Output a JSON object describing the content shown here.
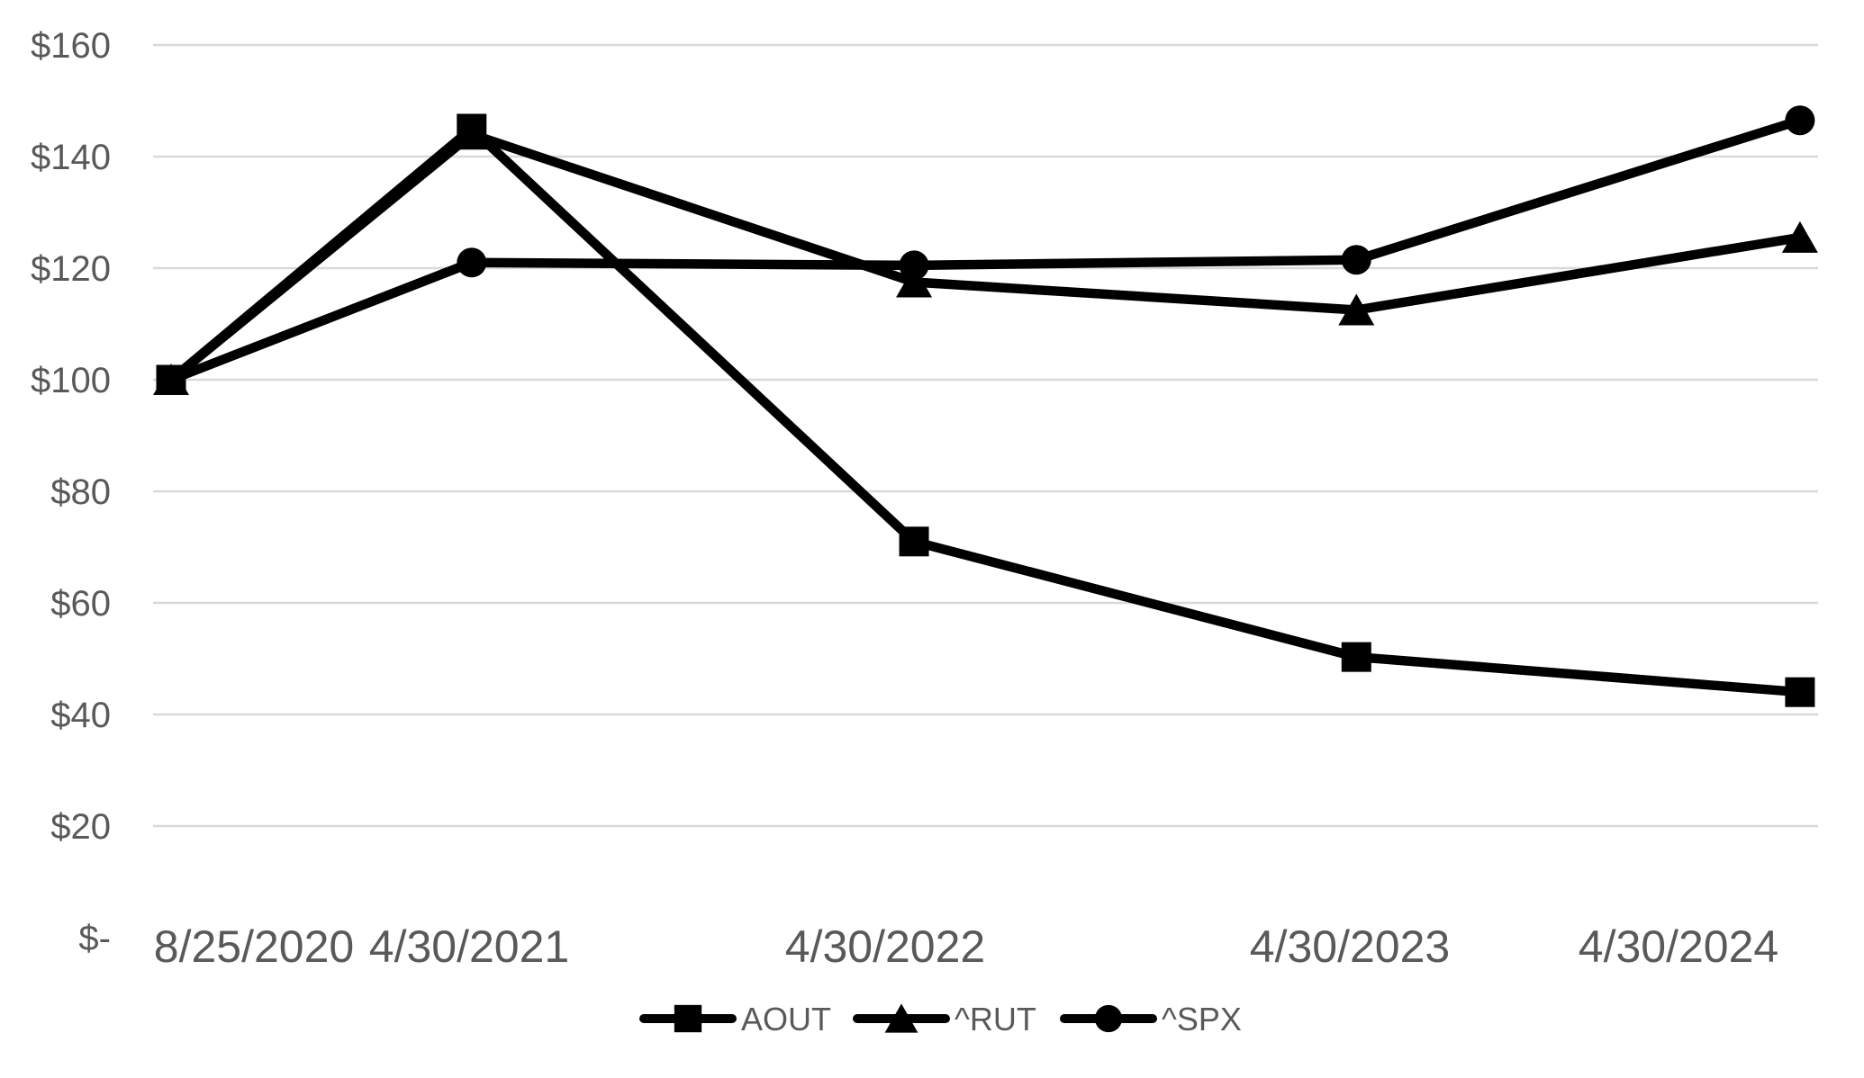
{
  "chart_data": {
    "type": "line",
    "title": "",
    "subtitle": "",
    "x_labels": [
      "8/25/2020",
      "4/30/2021",
      "4/30/2022",
      "4/30/2023",
      "4/30/2024"
    ],
    "x_day_offsets": [
      0,
      248,
      613,
      978,
      1344
    ],
    "series": [
      {
        "name": "AOUT",
        "marker": "square",
        "color": "#000000",
        "values": [
          100,
          145,
          71,
          50.3,
          44
        ]
      },
      {
        "name": "^RUT",
        "marker": "triangle",
        "color": "#000000",
        "values": [
          100,
          144,
          117.5,
          112.5,
          125.5
        ]
      },
      {
        "name": "^SPX",
        "marker": "circle",
        "color": "#000000",
        "values": [
          100,
          121,
          120.5,
          121.5,
          146.5
        ]
      }
    ],
    "y_axis": {
      "tick_labels": [
        "$160",
        "$140",
        "$120",
        "$100",
        "$80",
        "$60",
        "$40",
        "$20",
        "$-"
      ],
      "tick_values": [
        160,
        140,
        120,
        100,
        80,
        60,
        40,
        20,
        0
      ],
      "min": 0,
      "max": 160,
      "unit": "USD (value of $100 invested)"
    },
    "grid": "horizontal-only",
    "legend": {
      "position": "bottom",
      "entries": [
        {
          "label": "AOUT",
          "marker": "square"
        },
        {
          "label": "^RUT",
          "marker": "triangle"
        },
        {
          "label": "^SPX",
          "marker": "circle"
        }
      ]
    },
    "colors": {
      "series_line": "#000000",
      "gridline": "#d9d9d9",
      "tick_text": "#595959",
      "background": "#ffffff"
    }
  }
}
